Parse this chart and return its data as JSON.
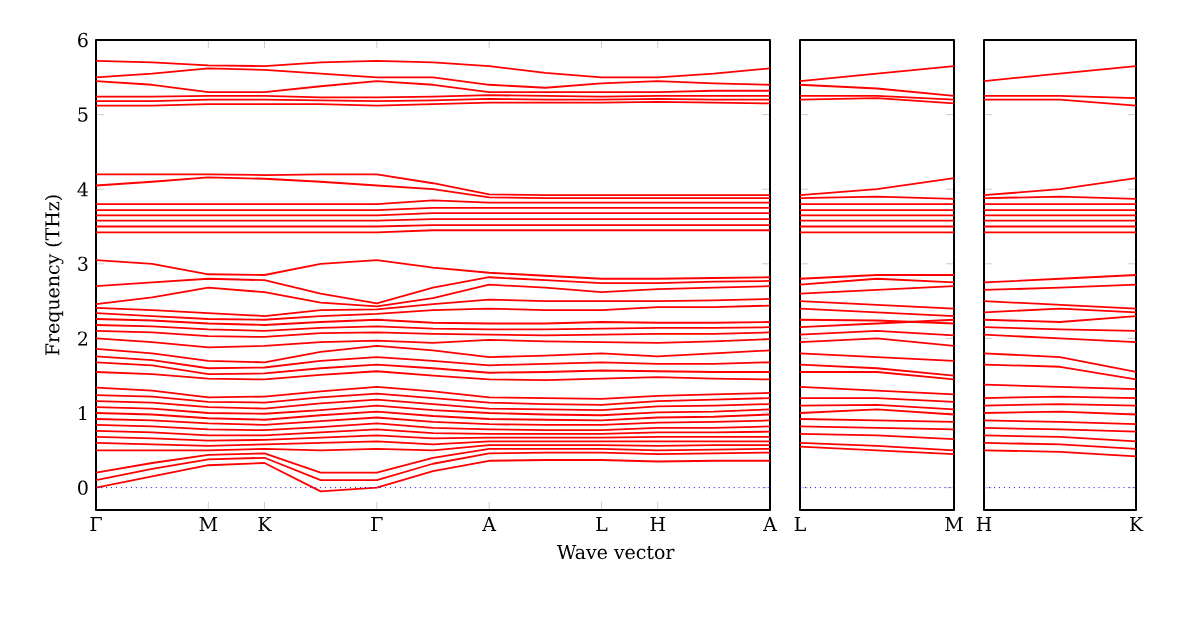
{
  "chart_data": [
    {
      "type": "line",
      "ylabel": "Frequency (THz)",
      "xlabel": "Wave vector",
      "color": "#ff0000",
      "categories": [
        "Γ",
        null,
        "M",
        "K",
        null,
        "Γ",
        null,
        "A",
        null,
        "L",
        "H",
        null,
        "A"
      ],
      "ylim": [
        -0.3,
        6
      ],
      "yticks": [
        0,
        1,
        2,
        3,
        4,
        5,
        6
      ],
      "ref_lines": [
        {
          "axis": "y",
          "value": 0,
          "color": "#0000ff",
          "line_style": "dotted"
        }
      ],
      "series": [
        {
          "values": [
            0,
            0.15,
            0.3,
            0.33,
            -0.05,
            0,
            0.22,
            0.36,
            0.37,
            0.37,
            0.35,
            0.36,
            0.36
          ]
        },
        {
          "values": [
            0.1,
            0.25,
            0.38,
            0.4,
            0.1,
            0.1,
            0.32,
            0.46,
            0.47,
            0.47,
            0.45,
            0.46,
            0.47
          ]
        },
        {
          "values": [
            0.2,
            0.33,
            0.44,
            0.46,
            0.2,
            0.2,
            0.4,
            0.52,
            0.52,
            0.52,
            0.5,
            0.51,
            0.52
          ]
        },
        {
          "values": [
            0.5,
            0.5,
            0.5,
            0.52,
            0.5,
            0.52,
            0.5,
            0.57,
            0.57,
            0.57,
            0.56,
            0.57,
            0.57
          ]
        },
        {
          "values": [
            0.6,
            0.58,
            0.56,
            0.58,
            0.6,
            0.62,
            0.58,
            0.62,
            0.62,
            0.62,
            0.62,
            0.62,
            0.62
          ]
        },
        {
          "values": [
            0.68,
            0.66,
            0.63,
            0.64,
            0.67,
            0.7,
            0.66,
            0.67,
            0.67,
            0.67,
            0.68,
            0.68,
            0.68
          ]
        },
        {
          "values": [
            0.76,
            0.74,
            0.7,
            0.7,
            0.74,
            0.78,
            0.73,
            0.72,
            0.72,
            0.72,
            0.74,
            0.74,
            0.75
          ]
        },
        {
          "values": [
            0.84,
            0.82,
            0.78,
            0.77,
            0.81,
            0.86,
            0.8,
            0.78,
            0.77,
            0.77,
            0.8,
            0.8,
            0.82
          ]
        },
        {
          "values": [
            0.92,
            0.9,
            0.86,
            0.84,
            0.89,
            0.94,
            0.88,
            0.85,
            0.84,
            0.84,
            0.87,
            0.88,
            0.9
          ]
        },
        {
          "values": [
            1.0,
            0.98,
            0.93,
            0.91,
            0.97,
            1.02,
            0.96,
            0.92,
            0.91,
            0.9,
            0.94,
            0.95,
            0.98
          ]
        },
        {
          "values": [
            1.08,
            1.06,
            1.0,
            0.99,
            1.04,
            1.1,
            1.04,
            1.0,
            0.98,
            0.97,
            1.01,
            1.02,
            1.05
          ]
        },
        {
          "values": [
            1.16,
            1.14,
            1.08,
            1.06,
            1.13,
            1.18,
            1.12,
            1.06,
            1.05,
            1.04,
            1.09,
            1.1,
            1.12
          ]
        },
        {
          "values": [
            1.24,
            1.22,
            1.15,
            1.14,
            1.21,
            1.26,
            1.2,
            1.14,
            1.12,
            1.11,
            1.16,
            1.18,
            1.2
          ]
        },
        {
          "values": [
            1.34,
            1.3,
            1.21,
            1.22,
            1.29,
            1.35,
            1.29,
            1.21,
            1.2,
            1.19,
            1.23,
            1.25,
            1.27
          ]
        },
        {
          "values": [
            1.55,
            1.52,
            1.46,
            1.45,
            1.51,
            1.56,
            1.5,
            1.45,
            1.44,
            1.46,
            1.48,
            1.46,
            1.45
          ]
        },
        {
          "values": [
            1.68,
            1.64,
            1.52,
            1.53,
            1.6,
            1.65,
            1.6,
            1.54,
            1.55,
            1.57,
            1.56,
            1.55,
            1.55
          ]
        },
        {
          "values": [
            1.76,
            1.71,
            1.6,
            1.61,
            1.7,
            1.75,
            1.7,
            1.64,
            1.66,
            1.68,
            1.66,
            1.66,
            1.68
          ]
        },
        {
          "values": [
            1.86,
            1.8,
            1.7,
            1.68,
            1.82,
            1.9,
            1.84,
            1.75,
            1.77,
            1.8,
            1.76,
            1.8,
            1.84
          ]
        },
        {
          "values": [
            2.0,
            1.95,
            1.88,
            1.9,
            1.95,
            1.97,
            1.94,
            1.98,
            1.96,
            1.95,
            1.94,
            1.96,
            1.99
          ]
        },
        {
          "values": [
            2.1,
            2.08,
            2.03,
            2.02,
            2.07,
            2.08,
            2.06,
            2.05,
            2.04,
            2.05,
            2.06,
            2.06,
            2.08
          ]
        },
        {
          "values": [
            2.18,
            2.16,
            2.12,
            2.1,
            2.14,
            2.16,
            2.13,
            2.12,
            2.12,
            2.13,
            2.14,
            2.14,
            2.15
          ]
        },
        {
          "values": [
            2.26,
            2.24,
            2.2,
            2.18,
            2.22,
            2.25,
            2.21,
            2.2,
            2.2,
            2.22,
            2.21,
            2.21,
            2.22
          ]
        },
        {
          "values": [
            2.34,
            2.3,
            2.26,
            2.25,
            2.3,
            2.33,
            2.38,
            2.4,
            2.38,
            2.38,
            2.42,
            2.42,
            2.44
          ]
        },
        {
          "values": [
            2.41,
            2.38,
            2.34,
            2.3,
            2.38,
            2.39,
            2.46,
            2.52,
            2.5,
            2.5,
            2.5,
            2.51,
            2.53
          ]
        },
        {
          "values": [
            2.46,
            2.55,
            2.68,
            2.62,
            2.48,
            2.43,
            2.54,
            2.72,
            2.68,
            2.62,
            2.66,
            2.68,
            2.7
          ]
        },
        {
          "values": [
            2.7,
            2.75,
            2.8,
            2.78,
            2.6,
            2.47,
            2.68,
            2.82,
            2.78,
            2.74,
            2.74,
            2.76,
            2.77
          ]
        },
        {
          "values": [
            3.05,
            3.0,
            2.86,
            2.85,
            3.0,
            3.05,
            2.95,
            2.88,
            2.84,
            2.8,
            2.8,
            2.81,
            2.82
          ]
        },
        {
          "values": [
            3.42,
            3.42,
            3.42,
            3.42,
            3.42,
            3.42,
            3.45,
            3.45,
            3.45,
            3.45,
            3.45,
            3.45,
            3.45
          ]
        },
        {
          "values": [
            3.5,
            3.5,
            3.5,
            3.5,
            3.5,
            3.5,
            3.52,
            3.52,
            3.52,
            3.52,
            3.52,
            3.52,
            3.52
          ]
        },
        {
          "values": [
            3.58,
            3.58,
            3.58,
            3.58,
            3.58,
            3.58,
            3.6,
            3.6,
            3.6,
            3.6,
            3.6,
            3.6,
            3.6
          ]
        },
        {
          "values": [
            3.65,
            3.65,
            3.65,
            3.65,
            3.65,
            3.65,
            3.68,
            3.68,
            3.68,
            3.68,
            3.68,
            3.68,
            3.68
          ]
        },
        {
          "values": [
            3.72,
            3.72,
            3.72,
            3.72,
            3.72,
            3.72,
            3.75,
            3.75,
            3.75,
            3.75,
            3.75,
            3.75,
            3.75
          ]
        },
        {
          "values": [
            3.8,
            3.8,
            3.8,
            3.8,
            3.8,
            3.8,
            3.85,
            3.82,
            3.82,
            3.82,
            3.82,
            3.82,
            3.82
          ]
        },
        {
          "values": [
            4.05,
            4.1,
            4.16,
            4.14,
            4.1,
            4.05,
            4.0,
            3.89,
            3.88,
            3.88,
            3.88,
            3.88,
            3.88
          ]
        },
        {
          "values": [
            4.2,
            4.2,
            4.2,
            4.19,
            4.2,
            4.2,
            4.08,
            3.93,
            3.92,
            3.92,
            3.92,
            3.92,
            3.92
          ]
        },
        {
          "values": [
            5.12,
            5.12,
            5.14,
            5.14,
            5.14,
            5.12,
            5.14,
            5.16,
            5.16,
            5.16,
            5.17,
            5.16,
            5.15
          ]
        },
        {
          "values": [
            5.18,
            5.18,
            5.2,
            5.2,
            5.19,
            5.18,
            5.19,
            5.21,
            5.2,
            5.2,
            5.21,
            5.2,
            5.2
          ]
        },
        {
          "values": [
            5.24,
            5.24,
            5.25,
            5.25,
            5.23,
            5.23,
            5.24,
            5.26,
            5.25,
            5.24,
            5.25,
            5.25,
            5.25
          ]
        },
        {
          "values": [
            5.45,
            5.4,
            5.3,
            5.3,
            5.38,
            5.45,
            5.4,
            5.3,
            5.3,
            5.3,
            5.3,
            5.32,
            5.32
          ]
        },
        {
          "values": [
            5.5,
            5.55,
            5.62,
            5.6,
            5.55,
            5.5,
            5.5,
            5.4,
            5.36,
            5.42,
            5.45,
            5.42,
            5.4
          ]
        },
        {
          "values": [
            5.72,
            5.7,
            5.66,
            5.65,
            5.7,
            5.72,
            5.7,
            5.65,
            5.56,
            5.5,
            5.5,
            5.55,
            5.62
          ]
        }
      ]
    },
    {
      "type": "line",
      "color": "#ff0000",
      "tick_labels": "x",
      "categories": [
        "L",
        null,
        "M"
      ],
      "ylim": [
        -0.3,
        6
      ],
      "yticks": [
        0,
        1,
        2,
        3,
        4,
        5,
        6
      ],
      "ref_lines": [
        {
          "axis": "y",
          "value": 0,
          "color": "#0000ff",
          "line_style": "dotted"
        }
      ],
      "series": [
        {
          "values": [
            0.55,
            0.5,
            0.45
          ]
        },
        {
          "values": [
            0.6,
            0.56,
            0.5
          ]
        },
        {
          "values": [
            0.72,
            0.7,
            0.65
          ]
        },
        {
          "values": [
            0.82,
            0.8,
            0.78
          ]
        },
        {
          "values": [
            0.92,
            0.9,
            0.88
          ]
        },
        {
          "values": [
            1.0,
            1.05,
            0.98
          ]
        },
        {
          "values": [
            1.1,
            1.11,
            1.05
          ]
        },
        {
          "values": [
            1.2,
            1.2,
            1.15
          ]
        },
        {
          "values": [
            1.35,
            1.3,
            1.25
          ]
        },
        {
          "values": [
            1.55,
            1.55,
            1.45
          ]
        },
        {
          "values": [
            1.65,
            1.6,
            1.5
          ]
        },
        {
          "values": [
            1.8,
            1.75,
            1.7
          ]
        },
        {
          "values": [
            1.95,
            2.0,
            1.9
          ]
        },
        {
          "values": [
            2.05,
            2.1,
            2.04
          ]
        },
        {
          "values": [
            2.15,
            2.2,
            2.25
          ]
        },
        {
          "values": [
            2.25,
            2.24,
            2.2
          ]
        },
        {
          "values": [
            2.4,
            2.35,
            2.3
          ]
        },
        {
          "values": [
            2.5,
            2.45,
            2.4
          ]
        },
        {
          "values": [
            2.6,
            2.65,
            2.7
          ]
        },
        {
          "values": [
            2.72,
            2.8,
            2.75
          ]
        },
        {
          "values": [
            2.8,
            2.85,
            2.85
          ]
        },
        {
          "values": [
            3.42,
            3.42,
            3.42
          ]
        },
        {
          "values": [
            3.5,
            3.5,
            3.5
          ]
        },
        {
          "values": [
            3.58,
            3.58,
            3.58
          ]
        },
        {
          "values": [
            3.65,
            3.65,
            3.65
          ]
        },
        {
          "values": [
            3.72,
            3.72,
            3.72
          ]
        },
        {
          "values": [
            3.8,
            3.8,
            3.8
          ]
        },
        {
          "values": [
            3.88,
            3.9,
            3.87
          ]
        },
        {
          "values": [
            3.92,
            4.0,
            4.15
          ]
        },
        {
          "values": [
            5.2,
            5.22,
            5.15
          ]
        },
        {
          "values": [
            5.25,
            5.25,
            5.2
          ]
        },
        {
          "values": [
            5.4,
            5.35,
            5.25
          ]
        },
        {
          "values": [
            5.45,
            5.55,
            5.65
          ]
        }
      ]
    },
    {
      "type": "line",
      "color": "#ff0000",
      "tick_labels": "x",
      "categories": [
        "H",
        null,
        "K"
      ],
      "ylim": [
        -0.3,
        6
      ],
      "yticks": [
        0,
        1,
        2,
        3,
        4,
        5,
        6
      ],
      "ref_lines": [
        {
          "axis": "y",
          "value": 0,
          "color": "#0000ff",
          "line_style": "dotted"
        }
      ],
      "series": [
        {
          "values": [
            0.5,
            0.48,
            0.42
          ]
        },
        {
          "values": [
            0.6,
            0.58,
            0.52
          ]
        },
        {
          "values": [
            0.7,
            0.68,
            0.62
          ]
        },
        {
          "values": [
            0.8,
            0.78,
            0.75
          ]
        },
        {
          "values": [
            0.9,
            0.88,
            0.85
          ]
        },
        {
          "values": [
            1.0,
            1.02,
            0.98
          ]
        },
        {
          "values": [
            1.1,
            1.12,
            1.1
          ]
        },
        {
          "values": [
            1.2,
            1.22,
            1.2
          ]
        },
        {
          "values": [
            1.38,
            1.35,
            1.32
          ]
        },
        {
          "values": [
            1.65,
            1.62,
            1.45
          ]
        },
        {
          "values": [
            1.8,
            1.75,
            1.55
          ]
        },
        {
          "values": [
            2.05,
            2.0,
            1.95
          ]
        },
        {
          "values": [
            2.15,
            2.12,
            2.1
          ]
        },
        {
          "values": [
            2.25,
            2.22,
            2.3
          ]
        },
        {
          "values": [
            2.35,
            2.4,
            2.35
          ]
        },
        {
          "values": [
            2.5,
            2.45,
            2.4
          ]
        },
        {
          "values": [
            2.65,
            2.68,
            2.72
          ]
        },
        {
          "values": [
            2.75,
            2.8,
            2.85
          ]
        },
        {
          "values": [
            3.42,
            3.42,
            3.42
          ]
        },
        {
          "values": [
            3.5,
            3.5,
            3.5
          ]
        },
        {
          "values": [
            3.58,
            3.58,
            3.58
          ]
        },
        {
          "values": [
            3.65,
            3.65,
            3.65
          ]
        },
        {
          "values": [
            3.72,
            3.72,
            3.72
          ]
        },
        {
          "values": [
            3.8,
            3.8,
            3.8
          ]
        },
        {
          "values": [
            3.88,
            3.9,
            3.87
          ]
        },
        {
          "values": [
            3.92,
            4.0,
            4.15
          ]
        },
        {
          "values": [
            5.2,
            5.2,
            5.12
          ]
        },
        {
          "values": [
            5.25,
            5.25,
            5.22
          ]
        },
        {
          "values": [
            5.45,
            5.55,
            5.65
          ]
        }
      ]
    }
  ]
}
